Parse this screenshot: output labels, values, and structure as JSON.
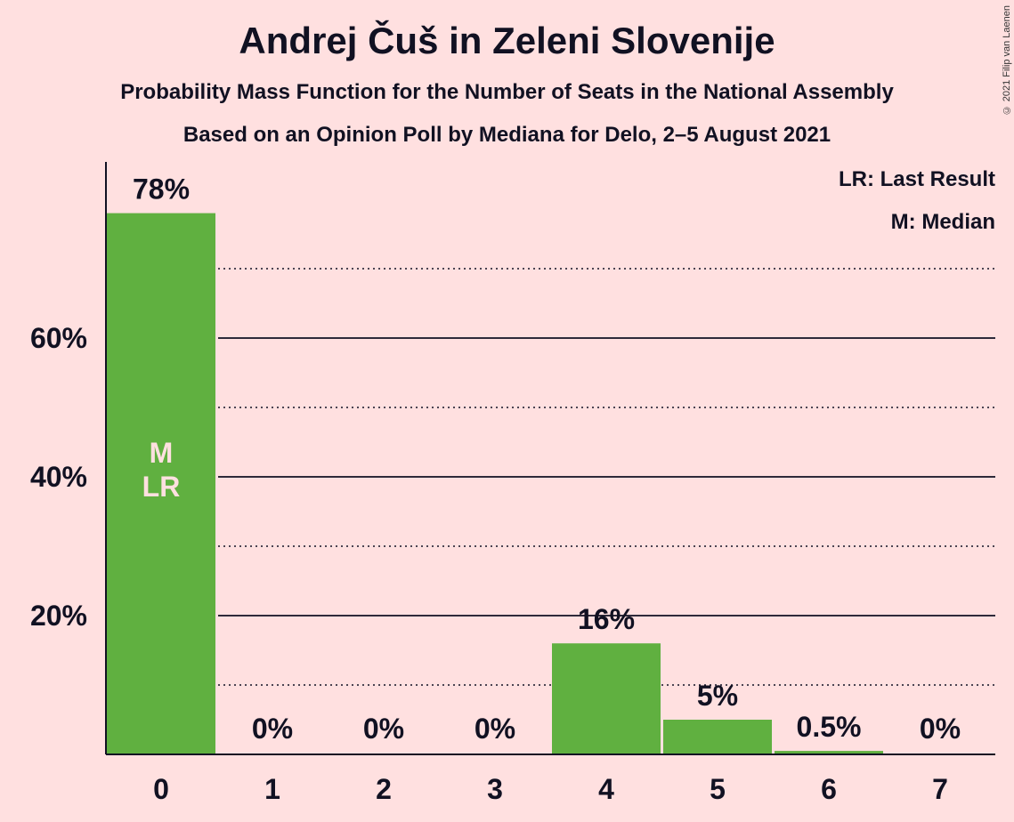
{
  "chart_data": {
    "type": "bar",
    "title": "Andrej Čuš in Zeleni Slovenije",
    "subtitle": "Probability Mass Function for the Number of Seats in the National Assembly",
    "subtitle2": "Based on an Opinion Poll by Mediana for Delo, 2–5 August 2021",
    "copyright": "© 2021 Filip van Laenen",
    "categories": [
      "0",
      "1",
      "2",
      "3",
      "4",
      "5",
      "6",
      "7"
    ],
    "values": [
      78,
      0,
      0,
      0,
      16,
      5,
      0.5,
      0
    ],
    "value_labels": [
      "78%",
      "0%",
      "0%",
      "0%",
      "16%",
      "5%",
      "0.5%",
      "0%"
    ],
    "y_ticks": [
      20,
      40,
      60
    ],
    "y_tick_labels": [
      "20%",
      "40%",
      "60%"
    ],
    "ylim": [
      0,
      85
    ],
    "grid_solid": [
      20,
      40,
      60
    ],
    "grid_dotted": [
      10,
      30,
      50,
      70
    ],
    "bar_color": "#60b040",
    "median_index": 0,
    "last_result_index": 0,
    "median_marker": "M",
    "last_result_marker": "LR",
    "legend": [
      "LR: Last Result",
      "M: Median"
    ],
    "legend_position": "top-right"
  }
}
